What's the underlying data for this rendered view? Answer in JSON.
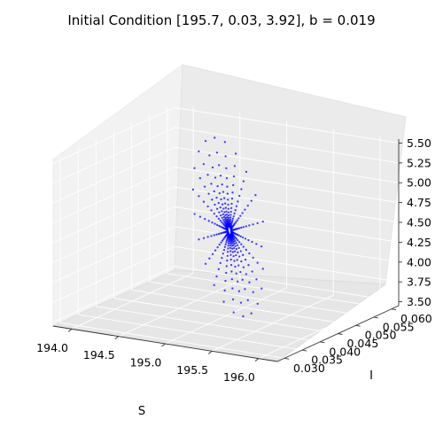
{
  "chart_data": {
    "type": "scatter",
    "projection": "3d",
    "title": "Initial Condition [195.7, 0.03, 3.92], b = 0.019",
    "xlabel": "S",
    "ylabel": "I",
    "zlabel": "",
    "xlim": [
      193.8,
      196.2
    ],
    "ylim": [
      0.028,
      0.062
    ],
    "zlim": [
      3.45,
      5.55
    ],
    "x_ticks": [
      "194.0",
      "194.5",
      "195.0",
      "195.5",
      "196.0"
    ],
    "y_ticks": [
      "0.030",
      "0.035",
      "0.040",
      "0.045",
      "0.050",
      "0.055",
      "0.060"
    ],
    "z_ticks": [
      "3.50",
      "3.75",
      "4.00",
      "4.25",
      "4.50",
      "4.75",
      "5.00",
      "5.25",
      "5.50"
    ],
    "grid": true,
    "marker_color": "#0000ff",
    "series": [
      {
        "initial_condition": [
          195.7,
          0.03,
          3.92
        ],
        "center": [
          195.0,
          0.046,
          4.5
        ],
        "points_per_loop": 22,
        "loops": 18,
        "decay": 0.84,
        "start_radius": [
          1.05,
          0.0165,
          1.1
        ],
        "phase": 0.55
      }
    ]
  }
}
